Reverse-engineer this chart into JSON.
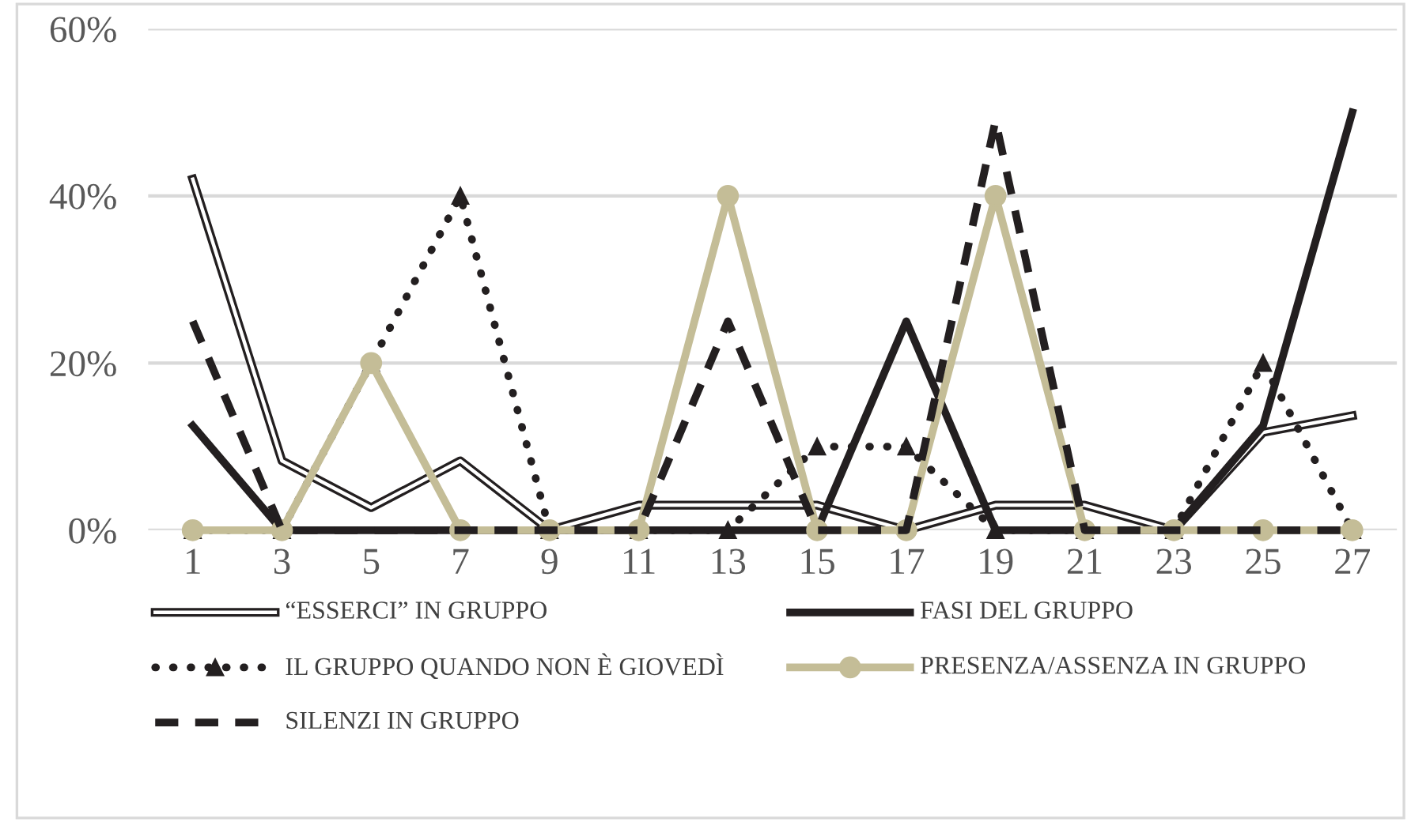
{
  "chart_data": {
    "type": "line",
    "categories": [
      "1",
      "3",
      "5",
      "7",
      "9",
      "11",
      "13",
      "15",
      "17",
      "19",
      "21",
      "23",
      "25",
      "27"
    ],
    "ylim": [
      0,
      60
    ],
    "yticks": [
      {
        "value": 0,
        "label": "0%"
      },
      {
        "value": 20,
        "label": "20%"
      },
      {
        "value": 40,
        "label": "40%"
      },
      {
        "value": 60,
        "label": "60%"
      }
    ],
    "grid": "y",
    "legend": "bottom",
    "series": [
      {
        "name": "“ESSERCI” IN GRUPPO",
        "color": "#231f20",
        "line_style": "solid",
        "marker": "none",
        "values": [
          42,
          8.3,
          2.7,
          8.3,
          0,
          3,
          3,
          3,
          0,
          3,
          3,
          0,
          11.7,
          13.7
        ]
      },
      {
        "name": "FASI DEL GRUPPO",
        "color": "#231f20",
        "line_style": "solid",
        "marker": "none",
        "values": [
          12.5,
          0,
          0,
          0,
          0,
          0,
          0,
          0,
          25,
          0,
          0,
          0,
          12.5,
          50
        ]
      },
      {
        "name": "IL GRUPPO QUANDO NON È GIOVEDÌ",
        "color": "#231f20",
        "line_style": "dotted",
        "marker": "triangle",
        "values": [
          0,
          0,
          20,
          40,
          0,
          0,
          0,
          10,
          10,
          0,
          0,
          0,
          20,
          0
        ]
      },
      {
        "name": "PRESENZA/ASSENZA IN GRUPPO",
        "color": "#c4bd97",
        "line_style": "solid",
        "marker": "circle",
        "values": [
          0,
          0,
          20,
          0,
          0,
          0,
          40,
          0,
          0,
          40,
          0,
          0,
          0,
          0
        ]
      },
      {
        "name": "SILENZI IN GRUPPO",
        "color": "#231f20",
        "line_style": "dashed",
        "marker": "none",
        "values": [
          25,
          0,
          0,
          0,
          0,
          0,
          25,
          0,
          0,
          49,
          0,
          0,
          0,
          0
        ]
      }
    ]
  }
}
